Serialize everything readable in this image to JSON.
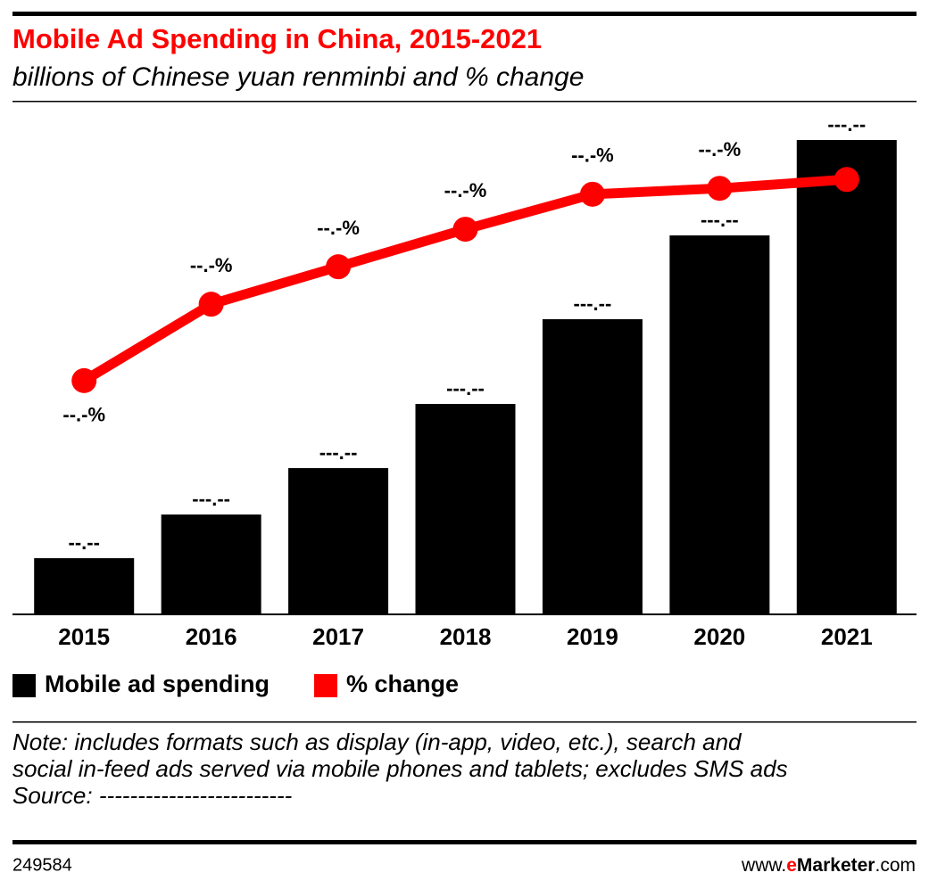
{
  "header": {
    "title": "Mobile Ad Spending in China, 2015-2021",
    "subtitle": "billions of Chinese yuan renminbi and % change"
  },
  "chart_data": {
    "type": "bar",
    "categories": [
      "2015",
      "2016",
      "2017",
      "2018",
      "2019",
      "2020",
      "2021"
    ],
    "series": [
      {
        "name": "Mobile ad spending",
        "type": "bar",
        "color": "#000000",
        "values": [
          63,
          112,
          164,
          236,
          331,
          425,
          532
        ],
        "value_labels": [
          "--.--",
          "---.--",
          "---.--",
          "---.--",
          "---.--",
          "---.--",
          "---.--"
        ]
      },
      {
        "name": "% change",
        "type": "line",
        "axis": "y2",
        "color": "#ff0000",
        "values": [
          47.4,
          62.9,
          70.5,
          78.1,
          85.2,
          86.4,
          88.2
        ],
        "value_labels": [
          "--.-%",
          "--.-%",
          "--.-%",
          "--.-%",
          "--.-%",
          "--.-%",
          "--.-%"
        ]
      }
    ],
    "ylim": [
      0,
      553
    ],
    "y2lim": [
      0,
      100
    ]
  },
  "notes": [
    "Note: includes formats such as display (in-app, video, etc.), search and",
    "social in-feed ads served via mobile phones and tablets; excludes SMS ads",
    "Source: -------------------------"
  ],
  "footer": {
    "id": "249584",
    "site": [
      "www.",
      "e",
      "Marketer",
      ".com"
    ]
  }
}
